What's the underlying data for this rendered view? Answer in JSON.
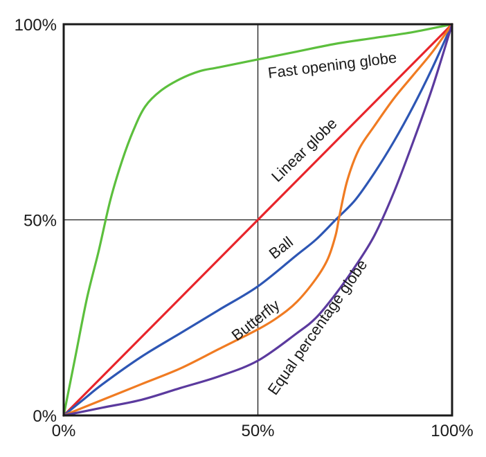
{
  "chart_data": {
    "type": "line",
    "title": "",
    "xlabel": "",
    "ylabel": "",
    "xlim": [
      0,
      100
    ],
    "ylim": [
      0,
      100
    ],
    "grid": "center lines at 50%",
    "legend": "inline curve labels",
    "x_ticks": [
      {
        "value": 0,
        "label": "0%"
      },
      {
        "value": 50,
        "label": "50%"
      },
      {
        "value": 100,
        "label": "100%"
      }
    ],
    "y_ticks": [
      {
        "value": 0,
        "label": "0%"
      },
      {
        "value": 50,
        "label": "50%"
      },
      {
        "value": 100,
        "label": "100%"
      }
    ],
    "series": [
      {
        "name": "Fast opening globe",
        "color": "#5cbf3d",
        "points": [
          [
            0,
            0
          ],
          [
            3,
            15
          ],
          [
            6,
            30
          ],
          [
            9,
            42
          ],
          [
            12,
            55
          ],
          [
            15,
            65
          ],
          [
            18,
            73
          ],
          [
            21,
            79
          ],
          [
            25,
            83
          ],
          [
            30,
            86
          ],
          [
            35,
            88
          ],
          [
            40,
            89
          ],
          [
            50,
            91
          ],
          [
            60,
            93
          ],
          [
            70,
            95
          ],
          [
            80,
            96.5
          ],
          [
            90,
            98
          ],
          [
            100,
            100
          ]
        ]
      },
      {
        "name": "Linear globe",
        "color": "#e8252b",
        "points": [
          [
            0,
            0
          ],
          [
            50,
            50
          ],
          [
            100,
            100
          ]
        ]
      },
      {
        "name": "Ball",
        "color": "#2d56b4",
        "points": [
          [
            0,
            0
          ],
          [
            5,
            4
          ],
          [
            10,
            8
          ],
          [
            20,
            15
          ],
          [
            30,
            21
          ],
          [
            40,
            27
          ],
          [
            50,
            33
          ],
          [
            60,
            41
          ],
          [
            65,
            45
          ],
          [
            70,
            50
          ],
          [
            75,
            55
          ],
          [
            80,
            62
          ],
          [
            85,
            70
          ],
          [
            90,
            79
          ],
          [
            95,
            89
          ],
          [
            100,
            100
          ]
        ]
      },
      {
        "name": "Butterfly",
        "color": "#f07b22",
        "points": [
          [
            0,
            0
          ],
          [
            10,
            4
          ],
          [
            20,
            8
          ],
          [
            30,
            12
          ],
          [
            40,
            17
          ],
          [
            50,
            22
          ],
          [
            55,
            25
          ],
          [
            60,
            29
          ],
          [
            65,
            35
          ],
          [
            68,
            40
          ],
          [
            70,
            46
          ],
          [
            71,
            51
          ],
          [
            73,
            60
          ],
          [
            76,
            68
          ],
          [
            80,
            74
          ],
          [
            85,
            81
          ],
          [
            90,
            87
          ],
          [
            95,
            93
          ],
          [
            100,
            100
          ]
        ]
      },
      {
        "name": "Equal percentage globe",
        "color": "#5b3a9e",
        "points": [
          [
            0,
            0
          ],
          [
            10,
            2
          ],
          [
            20,
            4
          ],
          [
            30,
            7
          ],
          [
            40,
            10
          ],
          [
            50,
            14
          ],
          [
            60,
            21
          ],
          [
            65,
            25
          ],
          [
            70,
            31
          ],
          [
            75,
            38
          ],
          [
            80,
            46
          ],
          [
            85,
            57
          ],
          [
            90,
            70
          ],
          [
            95,
            84
          ],
          [
            100,
            100
          ]
        ]
      }
    ]
  },
  "labels": {
    "fast_opening": "Fast opening globe",
    "linear": "Linear globe",
    "ball": "Ball",
    "butterfly": "Butterfly",
    "equal_percentage": "Equal percentage globe"
  }
}
